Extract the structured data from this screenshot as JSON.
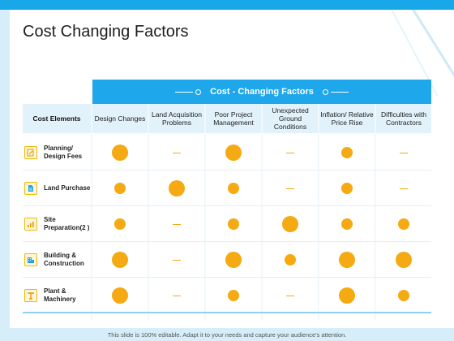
{
  "slide": {
    "title": "Cost Changing Factors",
    "banner": "Cost - Changing Factors",
    "footer": "This slide is 100% editable. Adapt it to your needs and capture your audience's attention."
  },
  "table": {
    "row_header": "Cost Elements",
    "columns": [
      "Design Changes",
      "Land Acquisition Problems",
      "Poor Project Management",
      "Unexpected Ground Conditions",
      "Inflation/ Relative Price Rise",
      "Difficulties with Contractors"
    ],
    "rows": [
      {
        "label": "Planning/ Design Fees",
        "icon": "planning-icon",
        "levels": [
          "large",
          "none",
          "large",
          "none",
          "medium",
          "none"
        ]
      },
      {
        "label": "Land Purchase",
        "icon": "document-icon",
        "levels": [
          "medium",
          "large",
          "medium",
          "none",
          "medium",
          "none"
        ]
      },
      {
        "label": "Site Preparation(2 )",
        "icon": "chart-icon",
        "levels": [
          "medium",
          "none",
          "medium",
          "large",
          "medium",
          "medium"
        ]
      },
      {
        "label": "Building & Construction",
        "icon": "building-icon",
        "levels": [
          "large",
          "none",
          "large",
          "medium",
          "large",
          "large"
        ]
      },
      {
        "label": "Plant & Machinery",
        "icon": "machinery-icon",
        "levels": [
          "large",
          "none",
          "medium",
          "none",
          "large",
          "medium"
        ]
      }
    ]
  },
  "colors": {
    "accent": "#1ea7ea",
    "marker": "#f5a912",
    "header_fill": "#e2f2fb"
  }
}
